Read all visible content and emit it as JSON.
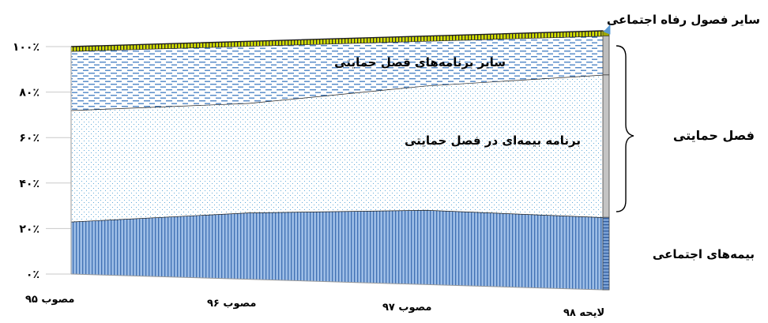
{
  "chart_data": {
    "type": "area",
    "stacked_percent": true,
    "categories": [
      "مصوب ۹۵",
      "مصوب ۹۶",
      "مصوب ۹۷",
      "لایحه ۹۸"
    ],
    "y_ticks": [
      "۰٪",
      "۲۰٪",
      "۴۰٪",
      "۶۰٪",
      "۸۰٪",
      "۱۰۰٪"
    ],
    "ylim": [
      0,
      100
    ],
    "series": [
      {
        "name": "بیمه‌های اجتماعی",
        "values": [
          23,
          28,
          30,
          28
        ],
        "color": "#8fb3e0"
      },
      {
        "name": "برنامه بیمه‌ای در فصل حمایتی",
        "values": [
          49,
          46,
          50,
          55
        ],
        "color": "#e3f1fa"
      },
      {
        "name": "سایر برنامه‌های فصل حمایتی",
        "values": [
          26,
          24,
          18,
          15
        ],
        "color": "#dde9f6"
      },
      {
        "name": "سایر فصول رفاه اجتماعی",
        "values": [
          2,
          2,
          2,
          2
        ],
        "color": "#c8d400"
      }
    ],
    "annotations": {
      "bracket_label": "فصل حمایتی",
      "arrow_label": "سایر فصول رفاه اجتماعی",
      "inner_label_top": "سایر برنامه‌های فصل حمایتی",
      "inner_label_mid": "برنامه بیمه‌ای در فصل حمایتی",
      "right_label_bottom": "بیمه‌های اجتماعی"
    }
  }
}
